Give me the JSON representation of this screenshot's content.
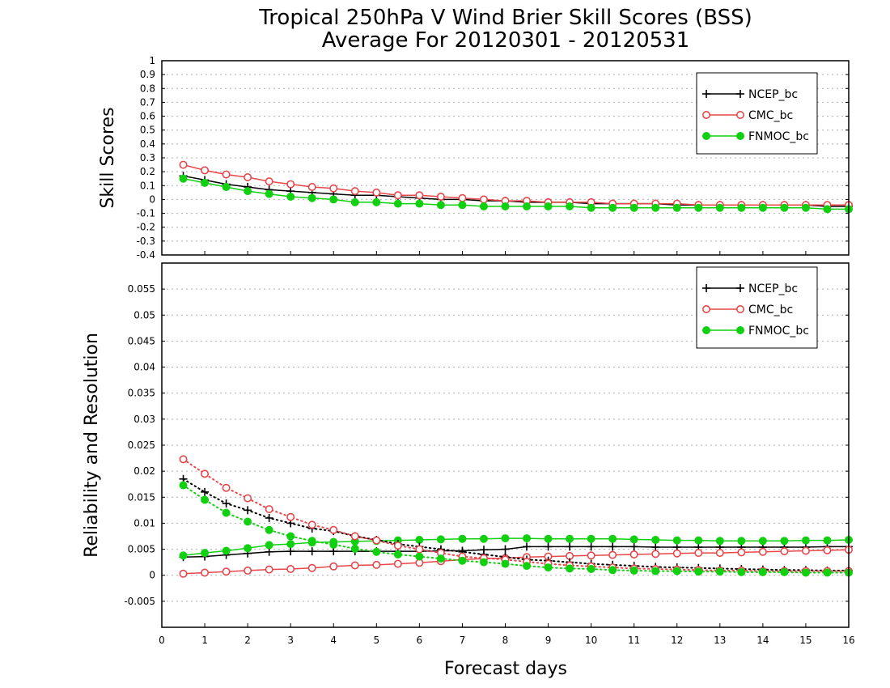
{
  "title": {
    "line1": "Tropical 250hPa V Wind Brier Skill Scores (BSS)",
    "line2": "Average For 20120301 - 20120531"
  },
  "colors": {
    "NCEP_bc": "#000000",
    "CMC_bc": "#e8464a",
    "FNMOC_bc": "#10d010"
  },
  "chart_data": [
    {
      "type": "line",
      "ylabel": "Skill Scores",
      "xlim": [
        0,
        16
      ],
      "ylim": [
        -0.4,
        1
      ],
      "yticks": [
        "1",
        "0.9",
        "0.8",
        "0.7",
        "0.6",
        "0.5",
        "0.4",
        "0.3",
        "0.2",
        "0.1",
        "0",
        "-0.1",
        "-0.2",
        "-0.3",
        "-0.4"
      ],
      "ytick_values": [
        1,
        0.9,
        0.8,
        0.7,
        0.6,
        0.5,
        0.4,
        0.3,
        0.2,
        0.1,
        0,
        -0.1,
        -0.2,
        -0.3,
        -0.4
      ],
      "grid": true,
      "legend": {
        "position": "top-right",
        "entries": [
          "NCEP_bc",
          "CMC_bc",
          "FNMOC_bc"
        ]
      },
      "x": [
        0.5,
        1,
        1.5,
        2,
        2.5,
        3,
        3.5,
        4,
        4.5,
        5,
        5.5,
        6,
        6.5,
        7,
        7.5,
        8,
        8.5,
        9,
        9.5,
        10,
        10.5,
        11,
        11.5,
        12,
        12.5,
        13,
        13.5,
        14,
        14.5,
        15,
        15.5,
        16
      ],
      "series": [
        {
          "name": "NCEP_bc",
          "marker": "plus",
          "linestyle": "solid",
          "values": [
            0.17,
            0.14,
            0.11,
            0.09,
            0.07,
            0.06,
            0.05,
            0.04,
            0.03,
            0.03,
            0.02,
            0.01,
            0.0,
            0.0,
            -0.01,
            -0.01,
            -0.02,
            -0.02,
            -0.02,
            -0.03,
            -0.03,
            -0.03,
            -0.03,
            -0.04,
            -0.04,
            -0.04,
            -0.04,
            -0.04,
            -0.04,
            -0.04,
            -0.05,
            -0.05
          ]
        },
        {
          "name": "CMC_bc",
          "marker": "open-circle",
          "linestyle": "solid",
          "values": [
            0.25,
            0.21,
            0.18,
            0.16,
            0.13,
            0.11,
            0.09,
            0.08,
            0.06,
            0.05,
            0.03,
            0.03,
            0.02,
            0.01,
            0.0,
            -0.01,
            -0.01,
            -0.02,
            -0.02,
            -0.02,
            -0.03,
            -0.03,
            -0.03,
            -0.03,
            -0.04,
            -0.04,
            -0.04,
            -0.04,
            -0.04,
            -0.04,
            -0.04,
            -0.04
          ]
        },
        {
          "name": "FNMOC_bc",
          "marker": "filled-circle",
          "linestyle": "solid",
          "values": [
            0.15,
            0.12,
            0.09,
            0.06,
            0.04,
            0.02,
            0.01,
            0.0,
            -0.02,
            -0.02,
            -0.03,
            -0.03,
            -0.04,
            -0.04,
            -0.05,
            -0.05,
            -0.05,
            -0.05,
            -0.05,
            -0.06,
            -0.06,
            -0.06,
            -0.06,
            -0.06,
            -0.06,
            -0.06,
            -0.06,
            -0.06,
            -0.06,
            -0.06,
            -0.07,
            -0.07
          ]
        }
      ]
    },
    {
      "type": "line",
      "xlabel": "Forecast days",
      "ylabel": "Reliability and Resolution",
      "xlim": [
        0,
        16
      ],
      "ylim": [
        -0.01,
        0.06
      ],
      "xticks": [
        "0",
        "1",
        "2",
        "3",
        "4",
        "5",
        "6",
        "7",
        "8",
        "9",
        "10",
        "11",
        "12",
        "13",
        "14",
        "15",
        "16"
      ],
      "yticks": [
        "0.055",
        "0.05",
        "0.045",
        "0.04",
        "0.035",
        "0.03",
        "0.025",
        "0.02",
        "0.015",
        "0.01",
        "0.005",
        "0",
        "-0.005"
      ],
      "ytick_values": [
        0.055,
        0.05,
        0.045,
        0.04,
        0.035,
        0.03,
        0.025,
        0.02,
        0.015,
        0.01,
        0.005,
        0,
        -0.005
      ],
      "grid": true,
      "legend": {
        "position": "top-right",
        "entries": [
          "NCEP_bc",
          "CMC_bc",
          "FNMOC_bc"
        ]
      },
      "x": [
        0.5,
        1,
        1.5,
        2,
        2.5,
        3,
        3.5,
        4,
        4.5,
        5,
        5.5,
        6,
        6.5,
        7,
        7.5,
        8,
        8.5,
        9,
        9.5,
        10,
        10.5,
        11,
        11.5,
        12,
        12.5,
        13,
        13.5,
        14,
        14.5,
        15,
        15.5,
        16
      ],
      "series": [
        {
          "name": "NCEP_bc",
          "marker": "plus",
          "linestyle": "solid",
          "values": [
            0.0035,
            0.0036,
            0.0039,
            0.0042,
            0.0045,
            0.0046,
            0.0046,
            0.0046,
            0.0046,
            0.0046,
            0.0046,
            0.0046,
            0.0047,
            0.0047,
            0.0049,
            0.005,
            0.0055,
            0.0055,
            0.0055,
            0.0055,
            0.0055,
            0.0055,
            0.0054,
            0.0054,
            0.0054,
            0.0054,
            0.0054,
            0.0054,
            0.0054,
            0.0054,
            0.0055,
            0.0055
          ]
        },
        {
          "name": "CMC_bc",
          "marker": "open-circle",
          "linestyle": "solid",
          "values": [
            0.0003,
            0.0005,
            0.0007,
            0.0009,
            0.0011,
            0.0012,
            0.0014,
            0.0017,
            0.0019,
            0.002,
            0.0022,
            0.0024,
            0.0027,
            0.003,
            0.0032,
            0.0033,
            0.0035,
            0.0036,
            0.0037,
            0.0038,
            0.0039,
            0.004,
            0.0041,
            0.0042,
            0.0043,
            0.0043,
            0.0044,
            0.0045,
            0.0046,
            0.0047,
            0.0048,
            0.0049
          ]
        },
        {
          "name": "FNMOC_bc",
          "marker": "filled-circle",
          "linestyle": "solid",
          "values": [
            0.0038,
            0.0043,
            0.0047,
            0.0052,
            0.0058,
            0.006,
            0.0063,
            0.0064,
            0.0065,
            0.0066,
            0.0067,
            0.0068,
            0.0069,
            0.007,
            0.007,
            0.0071,
            0.0071,
            0.007,
            0.007,
            0.007,
            0.007,
            0.0069,
            0.0068,
            0.0067,
            0.0067,
            0.0066,
            0.0066,
            0.0066,
            0.0066,
            0.0067,
            0.0067,
            0.0068
          ]
        },
        {
          "name": "NCEP_bc",
          "marker": "plus",
          "linestyle": "dotted",
          "values": [
            0.0185,
            0.016,
            0.0138,
            0.0125,
            0.011,
            0.01,
            0.009,
            0.0085,
            0.0075,
            0.0068,
            0.006,
            0.0055,
            0.005,
            0.0045,
            0.004,
            0.0035,
            0.003,
            0.0028,
            0.0025,
            0.0022,
            0.002,
            0.0018,
            0.0016,
            0.0015,
            0.0014,
            0.0013,
            0.0012,
            0.0011,
            0.001,
            0.001,
            0.0009,
            0.0009
          ]
        },
        {
          "name": "CMC_bc",
          "marker": "open-circle",
          "linestyle": "dotted",
          "values": [
            0.0223,
            0.0195,
            0.0168,
            0.0148,
            0.0127,
            0.0112,
            0.0097,
            0.0087,
            0.0075,
            0.0067,
            0.0057,
            0.005,
            0.0043,
            0.0036,
            0.0033,
            0.003,
            0.0026,
            0.0022,
            0.0019,
            0.0017,
            0.0015,
            0.0013,
            0.0012,
            0.0011,
            0.001,
            0.0009,
            0.0009,
            0.0008,
            0.0008,
            0.0008,
            0.0008,
            0.0008
          ]
        },
        {
          "name": "FNMOC_bc",
          "marker": "filled-circle",
          "linestyle": "dotted",
          "values": [
            0.0173,
            0.0145,
            0.012,
            0.0103,
            0.0087,
            0.0075,
            0.0066,
            0.0059,
            0.0051,
            0.0045,
            0.004,
            0.0036,
            0.0032,
            0.0028,
            0.0025,
            0.0022,
            0.0018,
            0.0015,
            0.0013,
            0.0012,
            0.001,
            0.0009,
            0.0008,
            0.0008,
            0.0007,
            0.0007,
            0.0006,
            0.0006,
            0.0006,
            0.0005,
            0.0005,
            0.0005
          ]
        }
      ]
    }
  ]
}
